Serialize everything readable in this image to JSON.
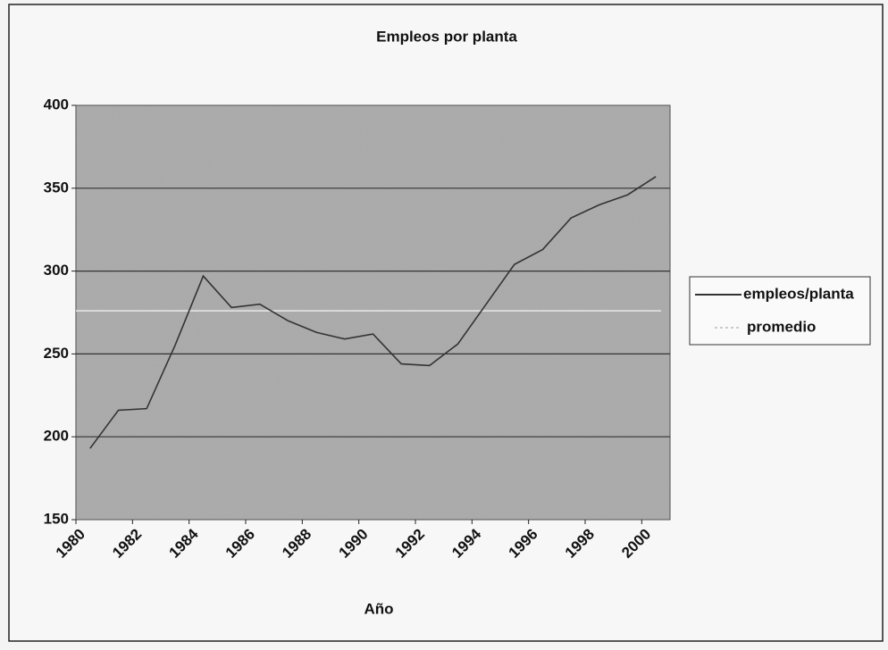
{
  "chart_data": {
    "type": "line",
    "title": "Empleos por planta",
    "x_label": "Año",
    "categories": [
      "1980",
      null,
      "1982",
      null,
      "1984",
      null,
      "1986",
      null,
      "1988",
      null,
      "1990",
      null,
      "1992",
      null,
      "1994",
      null,
      "1996",
      null,
      "1998",
      null,
      "2000"
    ],
    "series": [
      {
        "name": "empleos/planta",
        "color": "#333333",
        "values": [
          193,
          216,
          217,
          255,
          297,
          278,
          280,
          270,
          263,
          259,
          262,
          244,
          243,
          256,
          280,
          304,
          313,
          332,
          340,
          346,
          357
        ]
      }
    ],
    "average": {
      "name": "promedio",
      "color": "#e8e8e8",
      "value": 276
    },
    "ylim": [
      150,
      400
    ],
    "yticks": [
      150,
      200,
      250,
      300,
      350,
      400
    ],
    "grid": true,
    "legend": "right"
  }
}
